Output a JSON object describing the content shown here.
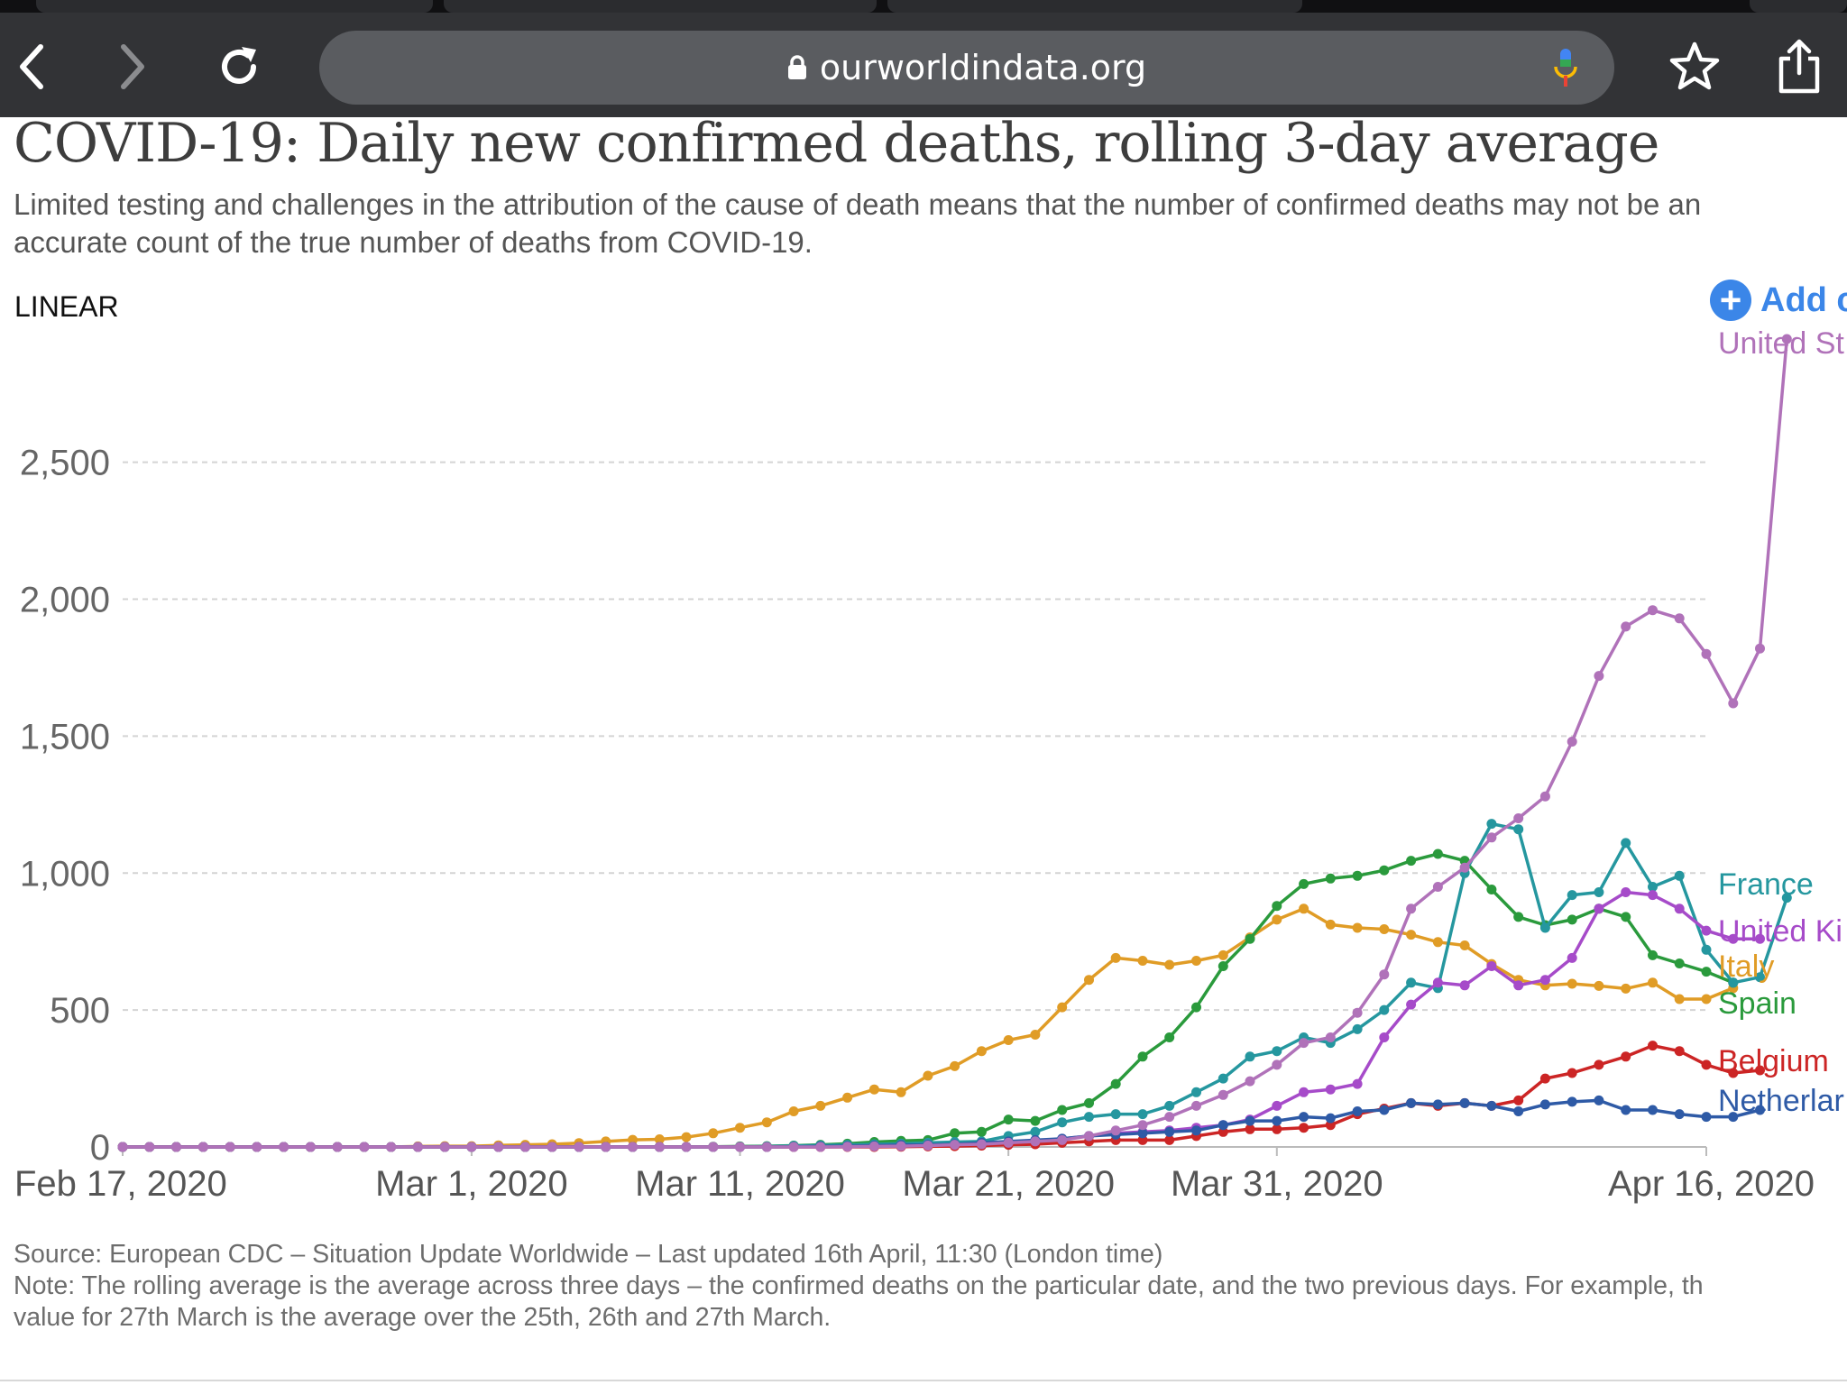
{
  "browser": {
    "url": "ourworldindata.org",
    "icons": {
      "back": "back-arrow-icon",
      "forward": "forward-arrow-icon",
      "reload": "reload-icon",
      "lock": "lock-icon",
      "mic": "microphone-icon",
      "bookmark": "star-icon",
      "share": "share-icon"
    }
  },
  "chart_header": {
    "title": "COVID-19: Daily new confirmed deaths, rolling 3-day average",
    "subtitle": "Limited testing and challenges in the attribution of the cause of death means that the number of confirmed deaths may not be an accurate count of the true number of deaths from COVID-19.",
    "scale_toggle": "LINEAR",
    "add_country_label": "Add c"
  },
  "footer": {
    "source": "Source: European CDC – Situation Update Worldwide – Last updated 16th April, 11:30 (London time)",
    "note_line1": "Note: The rolling average is the average across three days – the confirmed deaths on the particular date, and the two previous days. For example, th",
    "note_line2": "value for 27th March is the average over the 25th, 26th and 27th March."
  },
  "chart_data": {
    "type": "line",
    "title": "COVID-19: Daily new confirmed deaths, rolling 3-day average",
    "x_start": "2020-02-17",
    "x_end": "2020-04-16",
    "x_ticks": [
      {
        "date": "2020-02-17",
        "label": "Feb 17, 2020"
      },
      {
        "date": "2020-03-01",
        "label": "Mar 1, 2020"
      },
      {
        "date": "2020-03-11",
        "label": "Mar 11, 2020"
      },
      {
        "date": "2020-03-21",
        "label": "Mar 21, 2020"
      },
      {
        "date": "2020-03-31",
        "label": "Mar 31, 2020"
      },
      {
        "date": "2020-04-16",
        "label": "Apr 16, 2020"
      }
    ],
    "y_ticks": [
      {
        "value": 0,
        "label": "0"
      },
      {
        "value": 500,
        "label": "500"
      },
      {
        "value": 1000,
        "label": "1,000"
      },
      {
        "value": 1500,
        "label": "1,500"
      },
      {
        "value": 2000,
        "label": "2,000"
      },
      {
        "value": 2500,
        "label": "2,500"
      }
    ],
    "ylim": [
      0,
      2950
    ],
    "grid": "horizontal dashed",
    "legend": "end-of-line labels, right",
    "series": [
      {
        "name": "Italy",
        "label": "Italy",
        "color": "#e09c26",
        "segments": [
          {
            "start": "2020-02-17",
            "values": [
              0,
              0,
              0,
              0,
              0,
              0,
              0,
              0,
              0,
              0,
              0,
              2,
              3,
              3,
              6,
              8,
              10,
              14,
              20,
              26,
              28,
              36,
              50,
              70,
              90,
              130,
              150,
              180,
              210,
              200,
              260,
              295,
              350,
              390,
              410,
              510,
              610,
              690,
              680,
              665,
              680,
              700,
              765,
              830,
              870,
              812,
              800,
              795,
              775,
              748,
              736,
              668,
              610,
              590,
              596,
              588,
              578,
              600,
              540,
              540,
              580
            ]
          }
        ]
      },
      {
        "name": "Spain",
        "label": "Spain",
        "color": "#2a9a3c",
        "segments": [
          {
            "start": "2020-02-17",
            "values": [
              0,
              0,
              0,
              0,
              0,
              0,
              0,
              0,
              0,
              0,
              0,
              0,
              0,
              0,
              0,
              0,
              0,
              0,
              0,
              0,
              0,
              0,
              1,
              2,
              3,
              5,
              8,
              12,
              18,
              22,
              25,
              50,
              55,
              100,
              95,
              135,
              160,
              230,
              330,
              400,
              510,
              660,
              760,
              880,
              960,
              980,
              990,
              1010,
              1045,
              1070,
              1045,
              940,
              840,
              810,
              830,
              870,
              840,
              700,
              670,
              640,
              600
            ]
          }
        ]
      },
      {
        "name": "France",
        "label": "France",
        "color": "#25979f",
        "segments": [
          {
            "start": "2020-02-17",
            "values": [
              0,
              0,
              0,
              0,
              0,
              0,
              0,
              0,
              0,
              0,
              0,
              0,
              0,
              0,
              0,
              0,
              0,
              0,
              0,
              0,
              0,
              0,
              0,
              1,
              2,
              4,
              6,
              8,
              10,
              12,
              15,
              18,
              20,
              40,
              55,
              90,
              110,
              120,
              120,
              150,
              200,
              250,
              330,
              350,
              400,
              380,
              430,
              500,
              600,
              580,
              1000,
              1180,
              1160,
              800,
              920,
              930,
              1110,
              950,
              990,
              720,
              600,
              620,
              910
            ]
          }
        ]
      },
      {
        "name": "United Kingdom",
        "label": "United Ki",
        "color": "#a64bc9",
        "segments": [
          {
            "start": "2020-02-17",
            "values": [
              0,
              0,
              0,
              0,
              0,
              0,
              0,
              0,
              0,
              0,
              0,
              0,
              0,
              0,
              0,
              0,
              0,
              0,
              0,
              0,
              0,
              0,
              0,
              0,
              0,
              0,
              0,
              1,
              2,
              3,
              5,
              8,
              10,
              15,
              20,
              30,
              40,
              50,
              55,
              60,
              70,
              80,
              100,
              150,
              200,
              210,
              230,
              400,
              520,
              600,
              590,
              660,
              590,
              610,
              690,
              870,
              930,
              920,
              870,
              790,
              760,
              760
            ]
          }
        ]
      },
      {
        "name": "Belgium",
        "label": "Belgium",
        "color": "#cc2525",
        "segments": [
          {
            "start": "2020-02-17",
            "values": [
              0,
              0,
              0,
              0,
              0,
              0,
              0,
              0,
              0,
              0,
              0,
              0,
              0,
              0,
              0,
              0,
              0,
              0,
              0,
              0,
              0,
              0,
              0,
              0,
              0,
              0,
              0,
              0,
              0,
              1,
              2,
              3,
              5,
              8,
              10,
              15,
              20,
              25,
              25,
              25,
              40,
              55,
              65,
              65,
              70,
              80,
              120,
              140,
              160,
              150,
              160,
              150,
              170,
              250,
              270,
              300,
              330,
              370,
              350,
              300,
              270,
              280
            ]
          }
        ]
      },
      {
        "name": "Netherlands",
        "label": "Netherlar",
        "color": "#2e5aa6",
        "segments": [
          {
            "start": "2020-02-17",
            "values": [
              0,
              0,
              0,
              0,
              0,
              0,
              0,
              0,
              0,
              0,
              0,
              0,
              0,
              0,
              0,
              0,
              0,
              0,
              0,
              0,
              0,
              0,
              0,
              0,
              0,
              1,
              2,
              3,
              5,
              7,
              8,
              10,
              15,
              20,
              25,
              30,
              40,
              45,
              50,
              55,
              60,
              80,
              95,
              95,
              110,
              105,
              130,
              135,
              160,
              155,
              160,
              150,
              130,
              155,
              165,
              170,
              135,
              135,
              120,
              110,
              110,
              135
            ]
          }
        ]
      },
      {
        "name": "United States",
        "label": "United St",
        "color": "#b072b9",
        "segments": [
          {
            "start": "2020-02-17",
            "values": [
              0,
              0,
              0,
              0,
              0,
              0,
              0,
              0,
              0,
              0,
              0,
              0,
              0,
              0,
              0,
              0,
              0,
              0,
              0,
              0,
              0,
              0,
              0,
              0,
              0,
              0,
              0,
              1,
              2,
              3,
              5,
              8,
              10,
              15,
              20,
              25,
              40,
              60,
              80,
              110,
              150,
              190,
              240,
              300,
              380,
              400,
              490,
              630,
              870,
              950,
              1020,
              1130,
              1200,
              1280,
              1480,
              1720,
              1900,
              1960,
              1930,
              1800,
              1620,
              1820,
              2950
            ]
          }
        ]
      }
    ]
  }
}
